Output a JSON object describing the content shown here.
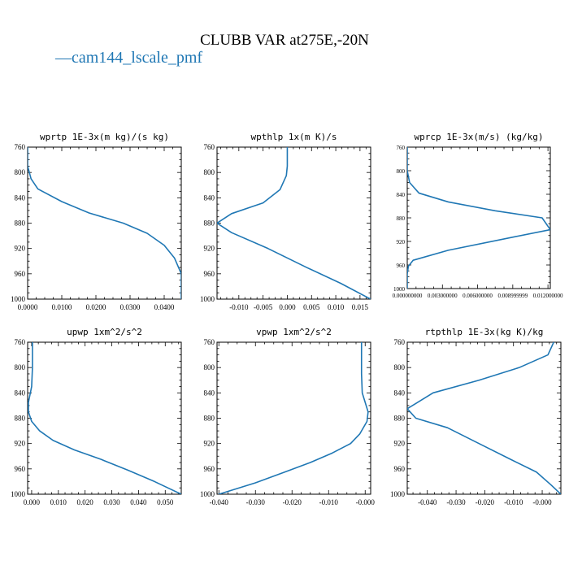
{
  "title": "CLUBB VAR at275E,-20N",
  "legend": {
    "label": "cam144_lscale_pmf",
    "color": "#1f77b4",
    "marker": "—"
  },
  "chart_data": [
    {
      "type": "line",
      "title": "wprtp  1E-3x(m kg)/(s kg)",
      "xlim": [
        0.0,
        0.045
      ],
      "ylim": [
        760,
        1000
      ],
      "xticks": [
        0.0,
        0.01,
        0.02,
        0.03,
        0.04
      ],
      "xtick_labels": [
        "0.0000",
        "0.0100",
        "0.0200",
        "0.0300",
        "0.0400"
      ],
      "yticks": [
        760,
        800,
        840,
        880,
        920,
        960,
        1000
      ],
      "ytick_labels": [
        "760",
        "800",
        "840",
        "880",
        "920",
        "960",
        "1000"
      ],
      "series": [
        {
          "color": "#1f77b4",
          "x": [
            0.0,
            0.0,
            0.001,
            0.003,
            0.01,
            0.018,
            0.028,
            0.035,
            0.04,
            0.043,
            0.045,
            0.045
          ],
          "y": [
            750,
            790,
            810,
            826,
            846,
            864,
            880,
            896,
            915,
            935,
            960,
            1000
          ]
        }
      ]
    },
    {
      "type": "line",
      "title": "wpthlp  1x(m K)/s",
      "xlim": [
        -0.0145,
        0.0172
      ],
      "ylim": [
        760,
        1000
      ],
      "xticks": [
        -0.01,
        -0.005,
        0.0,
        0.005,
        0.01,
        0.015
      ],
      "xtick_labels": [
        "-0.010",
        "-0.005",
        "0.000",
        "0.005",
        "0.010",
        "0.015"
      ],
      "yticks": [
        760,
        800,
        840,
        880,
        920,
        960,
        1000
      ],
      "ytick_labels": [
        "760",
        "800",
        "840",
        "880",
        "920",
        "960",
        "1000"
      ],
      "series": [
        {
          "color": "#1f77b4",
          "x": [
            0.0,
            0.0,
            -0.0002,
            -0.0015,
            -0.005,
            -0.0115,
            -0.0145,
            -0.0115,
            -0.004,
            0.004,
            0.011,
            0.0172
          ],
          "y": [
            750,
            790,
            805,
            827,
            848,
            865,
            880,
            895,
            920,
            950,
            975,
            1000
          ]
        }
      ]
    },
    {
      "type": "line",
      "title": "wprcp  1E-3x(m/s) (kg/kg)",
      "xlim": [
        0.0,
        0.0122
      ],
      "ylim": [
        760,
        1000
      ],
      "xticks": [
        0.0,
        0.003,
        0.006,
        0.009,
        0.012
      ],
      "xtick_labels": [
        "0.000000000",
        "0.003000000",
        "0.006000000",
        "0.008999999",
        "0.012000000"
      ],
      "yticks": [
        760,
        800,
        840,
        880,
        920,
        960,
        1000
      ],
      "ytick_labels": [
        "760",
        "800",
        "840",
        "880",
        "920",
        "960",
        "1000"
      ],
      "series": [
        {
          "color": "#1f77b4",
          "x": [
            0.0,
            0.0,
            0.0002,
            0.001,
            0.0035,
            0.0075,
            0.0115,
            0.0122,
            0.0092,
            0.0035,
            0.0005,
            0.0001,
            0.0,
            0.0
          ],
          "y": [
            750,
            800,
            820,
            838,
            853,
            868,
            880,
            900,
            912,
            935,
            952,
            962,
            975,
            1000
          ]
        }
      ]
    },
    {
      "type": "line",
      "title": "upwp  1xm^2/s^2",
      "xlim": [
        -0.0015,
        0.056
      ],
      "ylim": [
        760,
        1000
      ],
      "xticks": [
        0.0,
        0.01,
        0.02,
        0.03,
        0.04,
        0.05
      ],
      "xtick_labels": [
        "0.000",
        "0.010",
        "0.020",
        "0.030",
        "0.040",
        "0.050"
      ],
      "yticks": [
        760,
        800,
        840,
        880,
        920,
        960,
        1000
      ],
      "ytick_labels": [
        "760",
        "800",
        "840",
        "880",
        "920",
        "960",
        "1000"
      ],
      "series": [
        {
          "color": "#1f77b4",
          "x": [
            0.0003,
            0.0003,
            0.0,
            -0.0012,
            -0.0012,
            0.0,
            0.003,
            0.008,
            0.016,
            0.026,
            0.036,
            0.046,
            0.056
          ],
          "y": [
            750,
            800,
            830,
            855,
            870,
            885,
            900,
            915,
            930,
            945,
            962,
            980,
            1000
          ]
        }
      ]
    },
    {
      "type": "line",
      "title": "vpwp  1xm^2/s^2",
      "xlim": [
        -0.0405,
        0.0015
      ],
      "ylim": [
        760,
        1000
      ],
      "xticks": [
        -0.04,
        -0.03,
        -0.02,
        -0.01,
        0.0
      ],
      "xtick_labels": [
        "-0.040",
        "-0.030",
        "-0.020",
        "-0.010",
        "-0.000"
      ],
      "yticks": [
        760,
        800,
        840,
        880,
        920,
        960,
        1000
      ],
      "ytick_labels": [
        "760",
        "800",
        "840",
        "880",
        "920",
        "960",
        "1000"
      ],
      "series": [
        {
          "color": "#1f77b4",
          "x": [
            -0.001,
            -0.001,
            -0.0008,
            0.0,
            0.0008,
            0.0005,
            -0.0015,
            -0.004,
            -0.009,
            -0.015,
            -0.022,
            -0.03,
            -0.04
          ],
          "y": [
            750,
            810,
            840,
            855,
            870,
            885,
            905,
            920,
            935,
            950,
            965,
            982,
            1000
          ]
        }
      ]
    },
    {
      "type": "line",
      "title": "rtpthlp  1E-3x(kg K)/kg",
      "xlim": [
        -0.047,
        0.0065
      ],
      "ylim": [
        760,
        1000
      ],
      "xticks": [
        -0.04,
        -0.03,
        -0.02,
        -0.01,
        0.0
      ],
      "xtick_labels": [
        "-0.040",
        "-0.030",
        "-0.020",
        "-0.010",
        "-0.000"
      ],
      "yticks": [
        760,
        800,
        840,
        880,
        920,
        960,
        1000
      ],
      "ytick_labels": [
        "760",
        "800",
        "840",
        "880",
        "920",
        "960",
        "1000"
      ],
      "series": [
        {
          "color": "#1f77b4",
          "x": [
            0.004,
            0.004,
            0.002,
            -0.008,
            -0.022,
            -0.038,
            -0.047,
            -0.044,
            -0.033,
            -0.022,
            -0.011,
            -0.002,
            0.003,
            0.0065
          ],
          "y": [
            750,
            760,
            780,
            800,
            820,
            840,
            865,
            880,
            895,
            920,
            945,
            965,
            985,
            1000
          ]
        }
      ]
    }
  ]
}
